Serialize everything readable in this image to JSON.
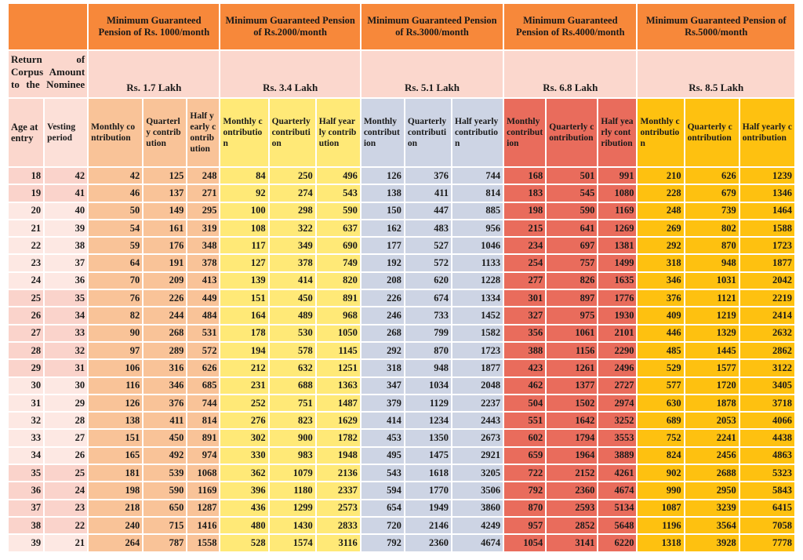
{
  "corpus_label": "Return of Corpus Amount to the Nominee",
  "age_label": "Age at entry",
  "vesting_label": "Vesting period",
  "groups": [
    {
      "pension": "Minimum Guaranteed Pension of Rs. 1000/month",
      "corpus": "Rs. 1.7 Lakh",
      "cols": [
        "Monthly contribution",
        "Quarterly contribution",
        "Half yearly contribution"
      ],
      "color": "#F9C398"
    },
    {
      "pension": "Minimum Guaranteed Pension of Rs.2000/month",
      "corpus": "Rs. 3.4 Lakh",
      "cols": [
        "Monthly contribution",
        "Quarterly contribution",
        "Half yearly contribution"
      ],
      "color": "#FFE977"
    },
    {
      "pension": "Minimum Guaranteed Pension of Rs.3000/month",
      "corpus": "Rs. 5.1 Lakh",
      "cols": [
        "Monthly contribution",
        "Quarterly contribution",
        "Half yearly contribution"
      ],
      "color": "#CDD4E4"
    },
    {
      "pension": "Minimum Guaranteed Pension of Rs.4000/month",
      "corpus": "Rs. 6.8 Lakh",
      "cols": [
        "Monthly contribution",
        "Quarterly contribution",
        "Half yearly contribution"
      ],
      "color": "#E96C5C"
    },
    {
      "pension": "Minimum Guaranteed Pension of Rs.5000/month",
      "corpus": "Rs. 8.5 Lakh",
      "cols": [
        "Monthly contribution",
        "Quarterly contribution",
        "Half yearly contribution"
      ],
      "color": "#FEC110"
    }
  ],
  "header_color": "#F7883A",
  "rows": [
    [
      18,
      42,
      42,
      125,
      248,
      84,
      250,
      496,
      126,
      376,
      744,
      168,
      501,
      991,
      210,
      626,
      1239
    ],
    [
      19,
      41,
      46,
      137,
      271,
      92,
      274,
      543,
      138,
      411,
      814,
      183,
      545,
      1080,
      228,
      679,
      1346
    ],
    [
      20,
      40,
      50,
      149,
      295,
      100,
      298,
      590,
      150,
      447,
      885,
      198,
      590,
      1169,
      248,
      739,
      1464
    ],
    [
      21,
      39,
      54,
      161,
      319,
      108,
      322,
      637,
      162,
      483,
      956,
      215,
      641,
      1269,
      269,
      802,
      1588
    ],
    [
      22,
      38,
      59,
      176,
      348,
      117,
      349,
      690,
      177,
      527,
      1046,
      234,
      697,
      1381,
      292,
      870,
      1723
    ],
    [
      23,
      37,
      64,
      191,
      378,
      127,
      378,
      749,
      192,
      572,
      1133,
      254,
      757,
      1499,
      318,
      948,
      1877
    ],
    [
      24,
      36,
      70,
      209,
      413,
      139,
      414,
      820,
      208,
      620,
      1228,
      277,
      826,
      1635,
      346,
      1031,
      2042
    ],
    [
      25,
      35,
      76,
      226,
      449,
      151,
      450,
      891,
      226,
      674,
      1334,
      301,
      897,
      1776,
      376,
      1121,
      2219
    ],
    [
      26,
      34,
      82,
      244,
      484,
      164,
      489,
      968,
      246,
      733,
      1452,
      327,
      975,
      1930,
      409,
      1219,
      2414
    ],
    [
      27,
      33,
      90,
      268,
      531,
      178,
      530,
      1050,
      268,
      799,
      1582,
      356,
      1061,
      2101,
      446,
      1329,
      2632
    ],
    [
      28,
      32,
      97,
      289,
      572,
      194,
      578,
      1145,
      292,
      870,
      1723,
      388,
      1156,
      2290,
      485,
      1445,
      2862
    ],
    [
      29,
      31,
      106,
      316,
      626,
      212,
      632,
      1251,
      318,
      948,
      1877,
      423,
      1261,
      2496,
      529,
      1577,
      3122
    ],
    [
      30,
      30,
      116,
      346,
      685,
      231,
      688,
      1363,
      347,
      1034,
      2048,
      462,
      1377,
      2727,
      577,
      1720,
      3405
    ],
    [
      31,
      29,
      126,
      376,
      744,
      252,
      751,
      1487,
      379,
      1129,
      2237,
      504,
      1502,
      2974,
      630,
      1878,
      3718
    ],
    [
      32,
      28,
      138,
      411,
      814,
      276,
      823,
      1629,
      414,
      1234,
      2443,
      551,
      1642,
      3252,
      689,
      2053,
      4066
    ],
    [
      33,
      27,
      151,
      450,
      891,
      302,
      900,
      1782,
      453,
      1350,
      2673,
      602,
      1794,
      3553,
      752,
      2241,
      4438
    ],
    [
      34,
      26,
      165,
      492,
      974,
      330,
      983,
      1948,
      495,
      1475,
      2921,
      659,
      1964,
      3889,
      824,
      2456,
      4863
    ],
    [
      35,
      25,
      181,
      539,
      1068,
      362,
      1079,
      2136,
      543,
      1618,
      3205,
      722,
      2152,
      4261,
      902,
      2688,
      5323
    ],
    [
      36,
      24,
      198,
      590,
      1169,
      396,
      1180,
      2337,
      594,
      1770,
      3506,
      792,
      2360,
      4674,
      990,
      2950,
      5843
    ],
    [
      37,
      23,
      218,
      650,
      1287,
      436,
      1299,
      2573,
      654,
      1949,
      3860,
      870,
      2593,
      5134,
      1087,
      3239,
      6415
    ],
    [
      38,
      22,
      240,
      715,
      1416,
      480,
      1430,
      2833,
      720,
      2146,
      4249,
      957,
      2852,
      5648,
      1196,
      3564,
      7058
    ],
    [
      39,
      21,
      264,
      787,
      1558,
      528,
      1574,
      3116,
      792,
      2360,
      4674,
      1054,
      3141,
      6220,
      1318,
      3928,
      7778
    ]
  ]
}
